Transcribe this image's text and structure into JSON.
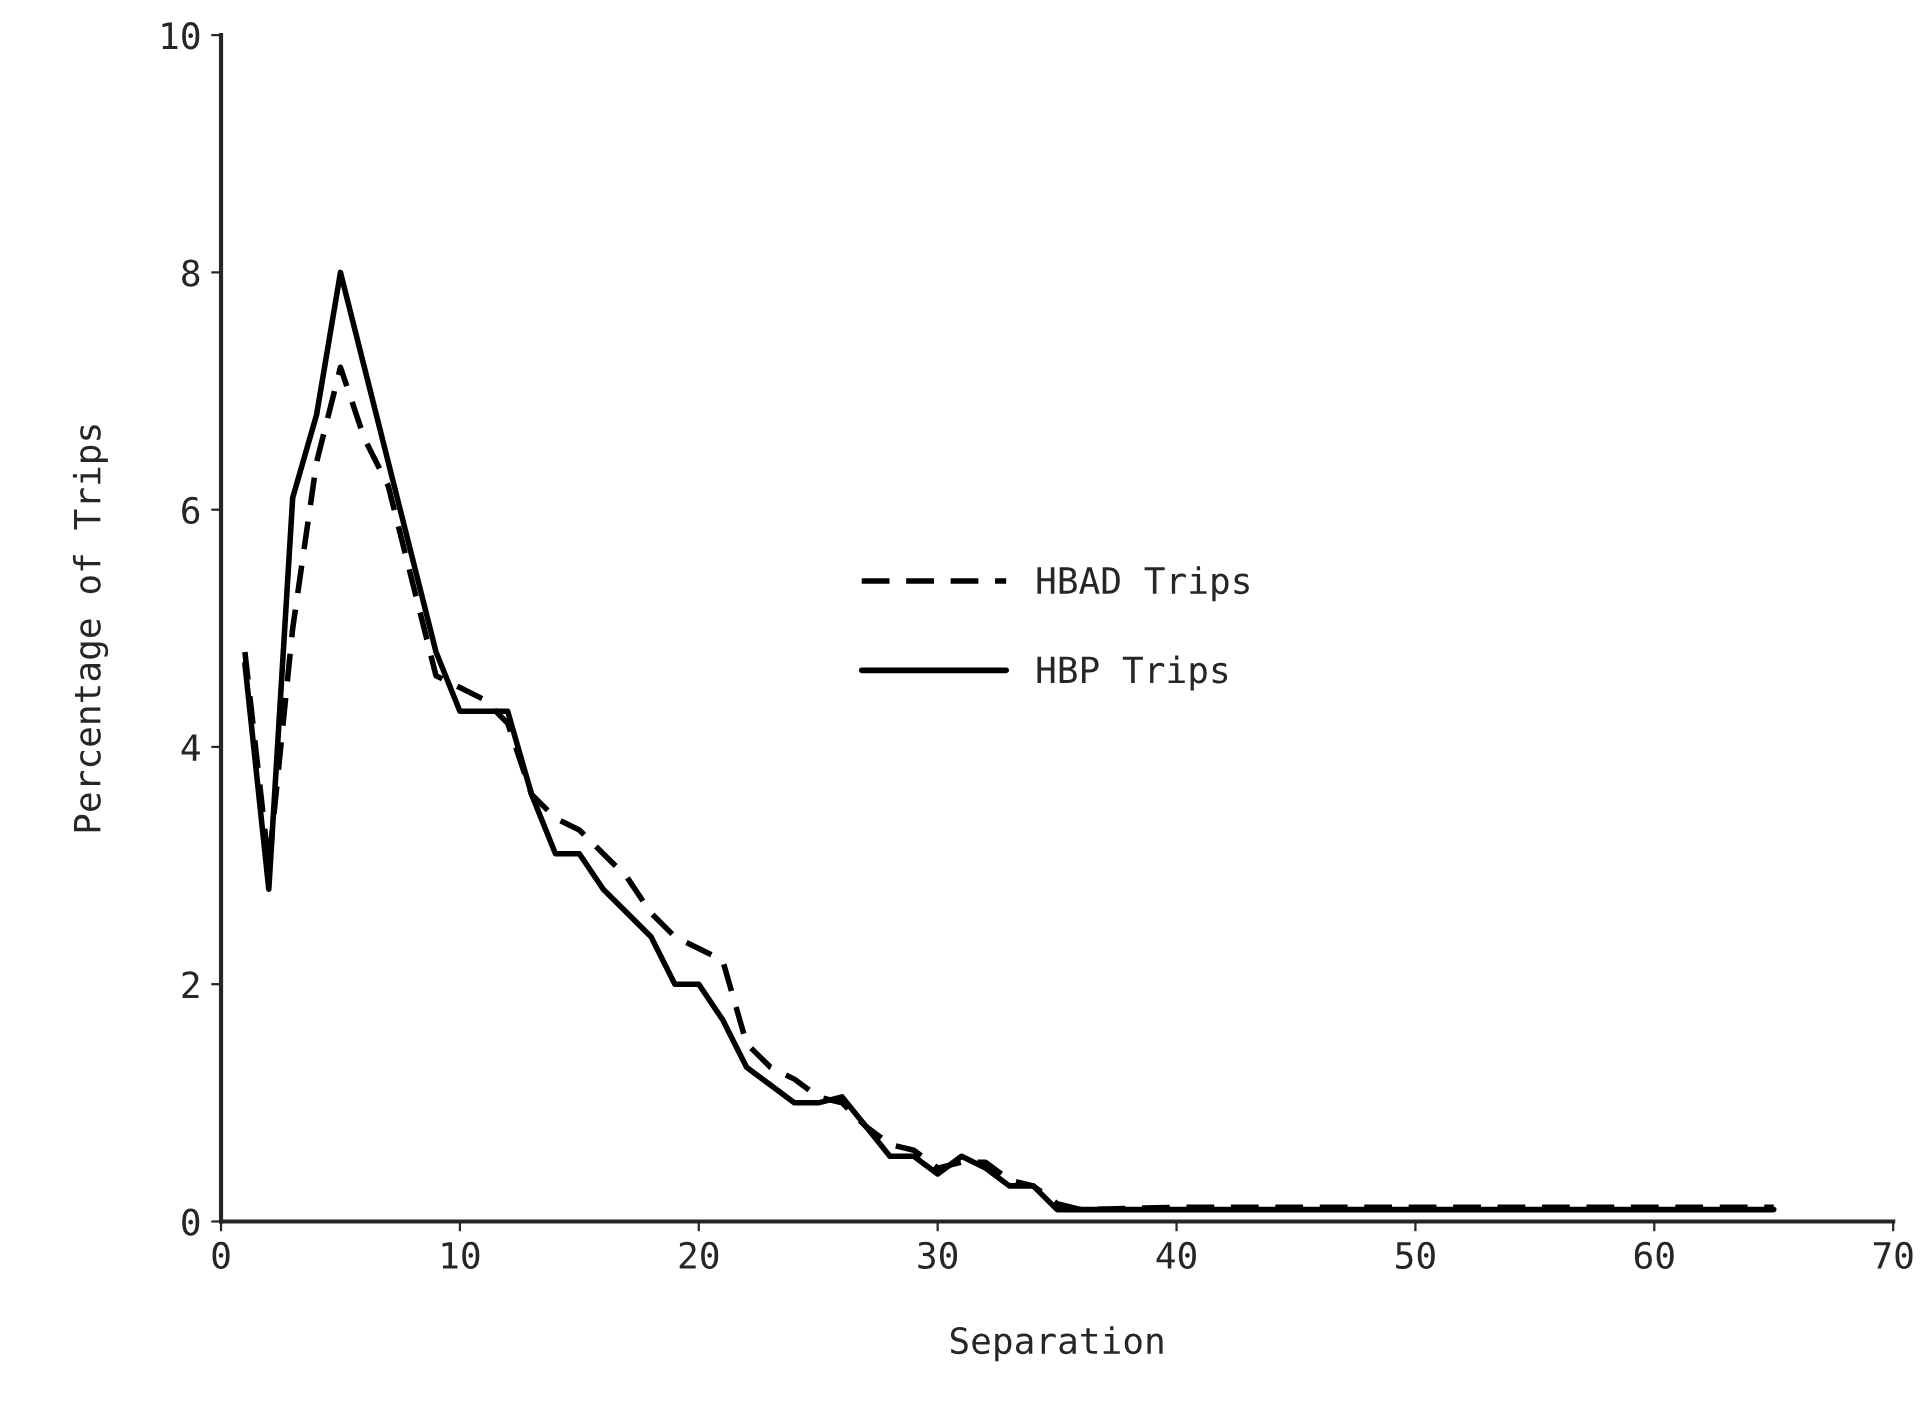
{
  "chart_data": {
    "type": "line",
    "xlabel": "Separation",
    "ylabel": "Percentage of Trips",
    "xlim": [
      0,
      70
    ],
    "ylim": [
      0,
      10
    ],
    "xticks": [
      0,
      10,
      20,
      30,
      40,
      50,
      60,
      70
    ],
    "yticks": [
      0,
      2,
      4,
      6,
      8,
      10
    ],
    "grid": false,
    "legend": "center",
    "marker": "none",
    "series": [
      {
        "name": "HBAD Trips",
        "color": "#000000",
        "line_style": "dashed",
        "x": [
          1,
          2,
          3,
          4,
          5,
          6,
          7,
          8,
          9,
          10,
          11,
          12,
          13,
          14,
          15,
          16,
          17,
          18,
          19,
          20,
          21,
          22,
          23,
          24,
          25,
          26,
          27,
          28,
          29,
          30,
          31,
          32,
          33,
          34,
          35,
          36,
          40,
          50,
          65
        ],
        "values": [
          4.8,
          3.0,
          5.0,
          6.4,
          7.2,
          6.6,
          6.2,
          5.4,
          4.6,
          4.5,
          4.4,
          4.2,
          3.6,
          3.4,
          3.3,
          3.1,
          2.9,
          2.6,
          2.4,
          2.3,
          2.2,
          1.5,
          1.3,
          1.2,
          1.05,
          1.0,
          0.8,
          0.65,
          0.6,
          0.45,
          0.5,
          0.5,
          0.35,
          0.3,
          0.15,
          0.1,
          0.12,
          0.12,
          0.12
        ]
      },
      {
        "name": "HBP Trips",
        "color": "#000000",
        "line_style": "solid",
        "x": [
          1,
          2,
          3,
          4,
          5,
          6,
          7,
          8,
          9,
          10,
          11,
          12,
          13,
          14,
          15,
          16,
          17,
          18,
          19,
          20,
          21,
          22,
          23,
          24,
          25,
          26,
          27,
          28,
          29,
          30,
          31,
          32,
          33,
          34,
          35,
          36,
          40,
          50,
          65
        ],
        "values": [
          4.7,
          2.8,
          6.1,
          6.8,
          8.0,
          7.2,
          6.4,
          5.6,
          4.8,
          4.3,
          4.3,
          4.3,
          3.6,
          3.1,
          3.1,
          2.8,
          2.6,
          2.4,
          2.0,
          2.0,
          1.7,
          1.3,
          1.15,
          1.0,
          1.0,
          1.05,
          0.8,
          0.55,
          0.55,
          0.4,
          0.55,
          0.45,
          0.3,
          0.3,
          0.1,
          0.1,
          0.1,
          0.1,
          0.1
        ]
      }
    ]
  }
}
